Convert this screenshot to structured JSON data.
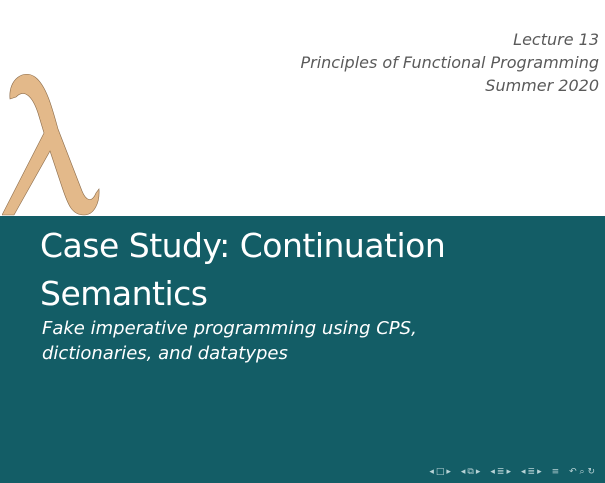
{
  "header": {
    "line1": "Lecture 13",
    "line2": "Principles of Functional Programming",
    "line3": "Summer 2020"
  },
  "logo": {
    "icon": "lambda-icon",
    "color": "#e3b98a",
    "stroke": "#8a6a48"
  },
  "title": "Case Study: Continuation Semantics",
  "subtitle": "Fake imperative programming using CPS, dictionaries, and datatypes",
  "colors": {
    "band": "#135d66",
    "text": "#ffffff",
    "header_text": "#5a5a5a"
  },
  "navigation": {
    "frame": {
      "left": "◂",
      "icon": "□",
      "right": "▸"
    },
    "subsection": {
      "left": "◂",
      "icon": "⧉",
      "right": "▸"
    },
    "section": {
      "left": "◂",
      "icon": "≣",
      "right": "▸"
    },
    "subsubsection": {
      "left": "◂",
      "icon": "≣",
      "right": "▸"
    },
    "toc": "≡",
    "search_controls": "↶ ⌕ ↻"
  }
}
